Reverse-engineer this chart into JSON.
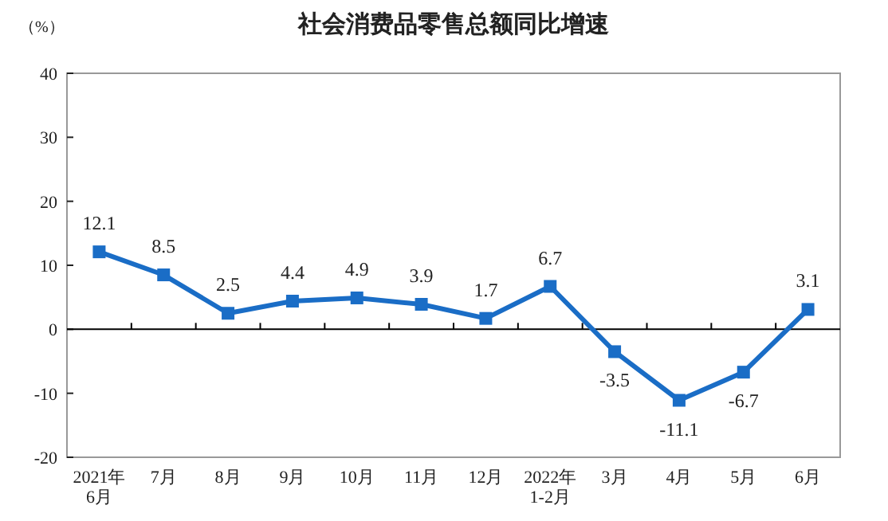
{
  "chart_data": {
    "type": "line",
    "title": "社会消费品零售总额同比增速",
    "ylabel": "（%）",
    "categories": [
      "2021年\n6月",
      "7月",
      "8月",
      "9月",
      "10月",
      "11月",
      "12月",
      "2022年\n1-2月",
      "3月",
      "4月",
      "5月",
      "6月"
    ],
    "series": [
      {
        "color": "#1a6dc6",
        "values": [
          12.1,
          8.5,
          2.5,
          4.4,
          4.9,
          3.9,
          1.7,
          6.7,
          -3.5,
          -11.1,
          -6.7,
          3.1
        ]
      }
    ],
    "ylim": [
      -20,
      40
    ],
    "yticks": [
      -20,
      -10,
      0,
      10,
      20,
      30,
      40
    ],
    "data_labels": true,
    "marker": "square",
    "line_style": "solid"
  }
}
